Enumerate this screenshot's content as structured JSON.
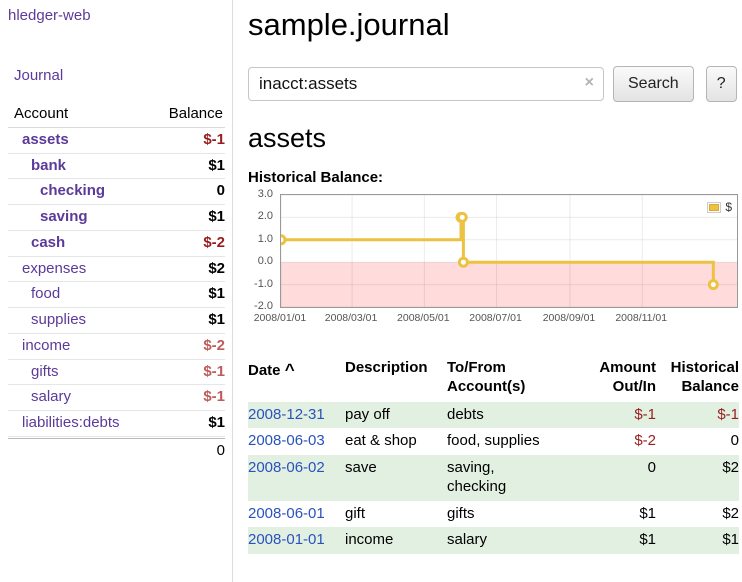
{
  "app": {
    "name": "hledger-web"
  },
  "sidebar": {
    "journal_link": "Journal",
    "accounts": {
      "col_account": "Account",
      "col_balance": "Balance",
      "rows": [
        {
          "name": "assets",
          "balance": "$-1"
        },
        {
          "name": "bank",
          "balance": "$1"
        },
        {
          "name": "checking",
          "balance": "0"
        },
        {
          "name": "saving",
          "balance": "$1"
        },
        {
          "name": "cash",
          "balance": "$-2"
        },
        {
          "name": "expenses",
          "balance": "$2"
        },
        {
          "name": "food",
          "balance": "$1"
        },
        {
          "name": "supplies",
          "balance": "$1"
        },
        {
          "name": "income",
          "balance": "$-2"
        },
        {
          "name": "gifts",
          "balance": "$-1"
        },
        {
          "name": "salary",
          "balance": "$-1"
        },
        {
          "name": "liabilities:debts",
          "balance": "$1"
        }
      ],
      "total": "0"
    }
  },
  "header": {
    "title": "sample.journal"
  },
  "search": {
    "value": "inacct:assets",
    "clear_icon": "×",
    "search_button": "Search",
    "help_button": "?"
  },
  "account_page": {
    "heading": "assets",
    "chart_label": "Historical Balance:"
  },
  "chart_data": {
    "type": "line",
    "title": "Historical Balance",
    "step": true,
    "grid": true,
    "legend": "$",
    "legend_position": "top-right",
    "ylim": [
      -2,
      3
    ],
    "y_ticks": [
      3,
      2,
      1,
      0,
      -1,
      -2
    ],
    "x_ticks": [
      "2008/01/01",
      "2008/03/01",
      "2008/05/01",
      "2008/07/01",
      "2008/09/01",
      "2008/11/01"
    ],
    "x_range": [
      "2008-01-01",
      "2009-01-20"
    ],
    "series": [
      {
        "name": "$",
        "color": "#edc240",
        "points": [
          [
            "2008-01-01",
            1
          ],
          [
            "2008-06-01",
            2
          ],
          [
            "2008-06-02",
            2
          ],
          [
            "2008-06-03",
            0
          ],
          [
            "2008-12-31",
            -1
          ]
        ]
      }
    ],
    "negative_region_color": "#ffdbdb"
  },
  "register": {
    "columns": {
      "date": "Date",
      "sort_icon": "^",
      "description": "Description",
      "accounts_line1": "To/From",
      "accounts_line2": "Account(s)",
      "amount_line1": "Amount",
      "amount_line2": "Out/In",
      "balance_line1": "Historical",
      "balance_line2": "Balance"
    },
    "rows": [
      {
        "date": "2008-12-31",
        "description": "pay off",
        "accounts": "debts",
        "amount": "$-1",
        "balance": "$-1"
      },
      {
        "date": "2008-06-03",
        "description": "eat & shop",
        "accounts": "food, supplies",
        "amount": "$-2",
        "balance": "0"
      },
      {
        "date": "2008-06-02",
        "description": "save",
        "accounts": "saving,\nchecking",
        "amount": "0",
        "balance": "$2"
      },
      {
        "date": "2008-06-01",
        "description": "gift",
        "accounts": "gifts",
        "amount": "$1",
        "balance": "$2"
      },
      {
        "date": "2008-01-01",
        "description": "income",
        "accounts": "salary",
        "amount": "$1",
        "balance": "$1"
      }
    ]
  },
  "colors": {
    "link_purple": "#5c3a99",
    "negative_dark": "#971e1e",
    "negative_light": "#bf5b5b",
    "date_link_blue": "#2a52bd",
    "row_green": "#e2f0e1",
    "chart_line_yellow": "#edc240",
    "chart_negative_region": "#ffdbdb"
  }
}
